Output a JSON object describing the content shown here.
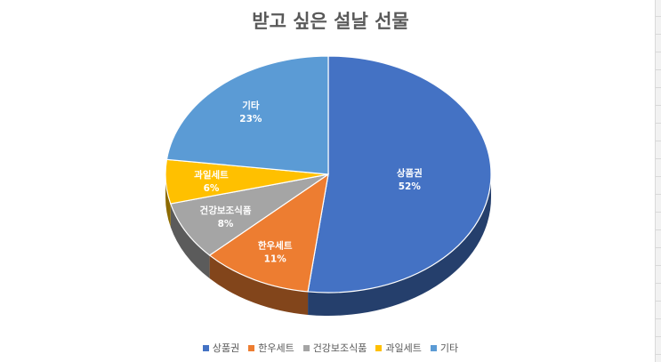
{
  "chart_data": {
    "type": "pie",
    "title": "받고 싶은 설날 선물",
    "categories": [
      "상품권",
      "한우세트",
      "건강보조식품",
      "과일세트",
      "기타"
    ],
    "values": [
      52,
      11,
      8,
      6,
      23
    ],
    "value_labels": [
      "52%",
      "11%",
      "8%",
      "6%",
      "23%"
    ],
    "colors": [
      "#4472C4",
      "#ED7D31",
      "#A5A5A5",
      "#FFC000",
      "#5B9BD5"
    ],
    "legend_position": "bottom",
    "style": "3d"
  }
}
